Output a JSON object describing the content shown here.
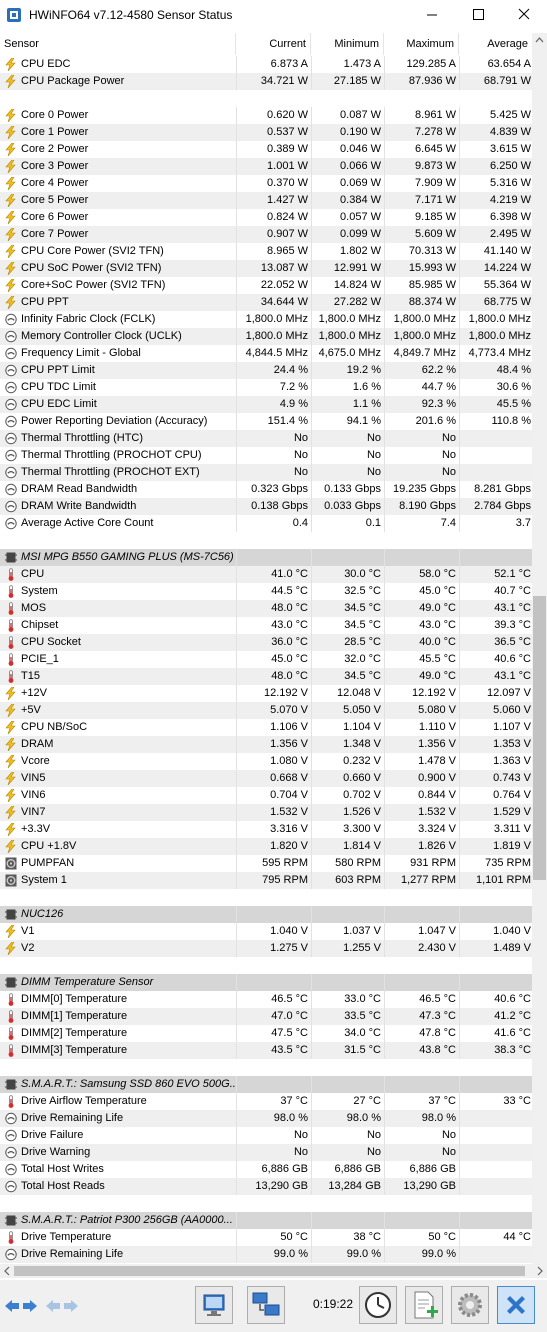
{
  "window": {
    "title": "HWiNFO64 v7.12-4580 Sensor Status"
  },
  "columns": [
    "Sensor",
    "Current",
    "Minimum",
    "Maximum",
    "Average"
  ],
  "rows": [
    {
      "icon": "bolt",
      "name": "CPU EDC",
      "cur": "6.873 A",
      "min": "1.473 A",
      "max": "129.285 A",
      "avg": "63.654 A"
    },
    {
      "icon": "bolt",
      "name": "CPU Package Power",
      "cur": "34.721 W",
      "min": "27.185 W",
      "max": "87.936 W",
      "avg": "68.791 W"
    },
    {
      "type": "blank"
    },
    {
      "icon": "bolt",
      "name": "Core 0 Power",
      "cur": "0.620 W",
      "min": "0.087 W",
      "max": "8.961 W",
      "avg": "5.425 W"
    },
    {
      "icon": "bolt",
      "name": "Core 1 Power",
      "cur": "0.537 W",
      "min": "0.190 W",
      "max": "7.278 W",
      "avg": "4.839 W"
    },
    {
      "icon": "bolt",
      "name": "Core 2 Power",
      "cur": "0.389 W",
      "min": "0.046 W",
      "max": "6.645 W",
      "avg": "3.615 W"
    },
    {
      "icon": "bolt",
      "name": "Core 3 Power",
      "cur": "1.001 W",
      "min": "0.066 W",
      "max": "9.873 W",
      "avg": "6.250 W"
    },
    {
      "icon": "bolt",
      "name": "Core 4 Power",
      "cur": "0.370 W",
      "min": "0.069 W",
      "max": "7.909 W",
      "avg": "5.316 W"
    },
    {
      "icon": "bolt",
      "name": "Core 5 Power",
      "cur": "1.427 W",
      "min": "0.384 W",
      "max": "7.171 W",
      "avg": "4.219 W"
    },
    {
      "icon": "bolt",
      "name": "Core 6 Power",
      "cur": "0.824 W",
      "min": "0.057 W",
      "max": "9.185 W",
      "avg": "6.398 W"
    },
    {
      "icon": "bolt",
      "name": "Core 7 Power",
      "cur": "0.907 W",
      "min": "0.099 W",
      "max": "5.609 W",
      "avg": "2.495 W"
    },
    {
      "icon": "bolt",
      "name": "CPU Core Power (SVI2 TFN)",
      "cur": "8.965 W",
      "min": "1.802 W",
      "max": "70.313 W",
      "avg": "41.140 W"
    },
    {
      "icon": "bolt",
      "name": "CPU SoC Power (SVI2 TFN)",
      "cur": "13.087 W",
      "min": "12.991 W",
      "max": "15.993 W",
      "avg": "14.224 W"
    },
    {
      "icon": "bolt",
      "name": "Core+SoC Power (SVI2 TFN)",
      "cur": "22.052 W",
      "min": "14.824 W",
      "max": "85.985 W",
      "avg": "55.364 W"
    },
    {
      "icon": "bolt",
      "name": "CPU PPT",
      "cur": "34.644 W",
      "min": "27.282 W",
      "max": "88.374 W",
      "avg": "68.775 W"
    },
    {
      "icon": "gauge",
      "name": "Infinity Fabric Clock (FCLK)",
      "cur": "1,800.0 MHz",
      "min": "1,800.0 MHz",
      "max": "1,800.0 MHz",
      "avg": "1,800.0 MHz"
    },
    {
      "icon": "gauge",
      "name": "Memory Controller Clock (UCLK)",
      "cur": "1,800.0 MHz",
      "min": "1,800.0 MHz",
      "max": "1,800.0 MHz",
      "avg": "1,800.0 MHz"
    },
    {
      "icon": "gauge",
      "name": "Frequency Limit - Global",
      "cur": "4,844.5 MHz",
      "min": "4,675.0 MHz",
      "max": "4,849.7 MHz",
      "avg": "4,773.4 MHz"
    },
    {
      "icon": "gauge",
      "name": "CPU PPT Limit",
      "cur": "24.4 %",
      "min": "19.2 %",
      "max": "62.2 %",
      "avg": "48.4 %"
    },
    {
      "icon": "gauge",
      "name": "CPU TDC Limit",
      "cur": "7.2 %",
      "min": "1.6 %",
      "max": "44.7 %",
      "avg": "30.6 %"
    },
    {
      "icon": "gauge",
      "name": "CPU EDC Limit",
      "cur": "4.9 %",
      "min": "1.1 %",
      "max": "92.3 %",
      "avg": "45.5 %"
    },
    {
      "icon": "gauge",
      "name": "Power Reporting Deviation (Accuracy)",
      "cur": "151.4 %",
      "min": "94.1 %",
      "max": "201.6 %",
      "avg": "110.8 %"
    },
    {
      "icon": "gauge",
      "name": "Thermal Throttling (HTC)",
      "cur": "No",
      "min": "No",
      "max": "No",
      "avg": ""
    },
    {
      "icon": "gauge",
      "name": "Thermal Throttling (PROCHOT CPU)",
      "cur": "No",
      "min": "No",
      "max": "No",
      "avg": ""
    },
    {
      "icon": "gauge",
      "name": "Thermal Throttling (PROCHOT EXT)",
      "cur": "No",
      "min": "No",
      "max": "No",
      "avg": ""
    },
    {
      "icon": "gauge",
      "name": "DRAM Read Bandwidth",
      "cur": "0.323 Gbps",
      "min": "0.133 Gbps",
      "max": "19.235 Gbps",
      "avg": "8.281 Gbps"
    },
    {
      "icon": "gauge",
      "name": "DRAM Write Bandwidth",
      "cur": "0.138 Gbps",
      "min": "0.033 Gbps",
      "max": "8.190 Gbps",
      "avg": "2.784 Gbps"
    },
    {
      "icon": "gauge",
      "name": "Average Active Core Count",
      "cur": "0.4",
      "min": "0.1",
      "max": "7.4",
      "avg": "3.7"
    },
    {
      "type": "blank"
    },
    {
      "type": "group",
      "icon": "chip",
      "name": "MSI MPG B550 GAMING PLUS (MS-7C56) (..."
    },
    {
      "icon": "thermo",
      "name": "CPU",
      "cur": "41.0 °C",
      "min": "30.0 °C",
      "max": "58.0 °C",
      "avg": "52.1 °C"
    },
    {
      "icon": "thermo",
      "name": "System",
      "cur": "44.5 °C",
      "min": "32.5 °C",
      "max": "45.0 °C",
      "avg": "40.7 °C"
    },
    {
      "icon": "thermo",
      "name": "MOS",
      "cur": "48.0 °C",
      "min": "34.5 °C",
      "max": "49.0 °C",
      "avg": "43.1 °C"
    },
    {
      "icon": "thermo",
      "name": "Chipset",
      "cur": "43.0 °C",
      "min": "34.5 °C",
      "max": "43.0 °C",
      "avg": "39.3 °C"
    },
    {
      "icon": "thermo",
      "name": "CPU Socket",
      "cur": "36.0 °C",
      "min": "28.5 °C",
      "max": "40.0 °C",
      "avg": "36.5 °C"
    },
    {
      "icon": "thermo",
      "name": "PCIE_1",
      "cur": "45.0 °C",
      "min": "32.0 °C",
      "max": "45.5 °C",
      "avg": "40.6 °C"
    },
    {
      "icon": "thermo",
      "name": "T15",
      "cur": "48.0 °C",
      "min": "34.5 °C",
      "max": "49.0 °C",
      "avg": "43.1 °C"
    },
    {
      "icon": "bolt",
      "name": "+12V",
      "cur": "12.192 V",
      "min": "12.048 V",
      "max": "12.192 V",
      "avg": "12.097 V"
    },
    {
      "icon": "bolt",
      "name": "+5V",
      "cur": "5.070 V",
      "min": "5.050 V",
      "max": "5.080 V",
      "avg": "5.060 V"
    },
    {
      "icon": "bolt",
      "name": "CPU NB/SoC",
      "cur": "1.106 V",
      "min": "1.104 V",
      "max": "1.110 V",
      "avg": "1.107 V"
    },
    {
      "icon": "bolt",
      "name": "DRAM",
      "cur": "1.356 V",
      "min": "1.348 V",
      "max": "1.356 V",
      "avg": "1.353 V"
    },
    {
      "icon": "bolt",
      "name": "Vcore",
      "cur": "1.080 V",
      "min": "0.232 V",
      "max": "1.478 V",
      "avg": "1.363 V"
    },
    {
      "icon": "bolt",
      "name": "VIN5",
      "cur": "0.668 V",
      "min": "0.660 V",
      "max": "0.900 V",
      "avg": "0.743 V"
    },
    {
      "icon": "bolt",
      "name": "VIN6",
      "cur": "0.704 V",
      "min": "0.702 V",
      "max": "0.844 V",
      "avg": "0.764 V"
    },
    {
      "icon": "bolt",
      "name": "VIN7",
      "cur": "1.532 V",
      "min": "1.526 V",
      "max": "1.532 V",
      "avg": "1.529 V"
    },
    {
      "icon": "bolt",
      "name": "+3.3V",
      "cur": "3.316 V",
      "min": "3.300 V",
      "max": "3.324 V",
      "avg": "3.311 V"
    },
    {
      "icon": "bolt",
      "name": "CPU +1.8V",
      "cur": "1.820 V",
      "min": "1.814 V",
      "max": "1.826 V",
      "avg": "1.819 V"
    },
    {
      "icon": "fan",
      "name": "PUMPFAN",
      "cur": "595 RPM",
      "min": "580 RPM",
      "max": "931 RPM",
      "avg": "735 RPM"
    },
    {
      "icon": "fan",
      "name": "System 1",
      "cur": "795 RPM",
      "min": "603 RPM",
      "max": "1,277 RPM",
      "avg": "1,101 RPM"
    },
    {
      "type": "blank"
    },
    {
      "type": "group",
      "icon": "chip",
      "name": "NUC126"
    },
    {
      "icon": "bolt",
      "name": "V1",
      "cur": "1.040 V",
      "min": "1.037 V",
      "max": "1.047 V",
      "avg": "1.040 V"
    },
    {
      "icon": "bolt",
      "name": "V2",
      "cur": "1.275 V",
      "min": "1.255 V",
      "max": "2.430 V",
      "avg": "1.489 V"
    },
    {
      "type": "blank"
    },
    {
      "type": "group",
      "icon": "chip",
      "name": "DIMM Temperature Sensor"
    },
    {
      "icon": "thermo",
      "name": "DIMM[0] Temperature",
      "cur": "46.5 °C",
      "min": "33.0 °C",
      "max": "46.5 °C",
      "avg": "40.6 °C"
    },
    {
      "icon": "thermo",
      "name": "DIMM[1] Temperature",
      "cur": "47.0 °C",
      "min": "33.5 °C",
      "max": "47.3 °C",
      "avg": "41.2 °C"
    },
    {
      "icon": "thermo",
      "name": "DIMM[2] Temperature",
      "cur": "47.5 °C",
      "min": "34.0 °C",
      "max": "47.8 °C",
      "avg": "41.6 °C"
    },
    {
      "icon": "thermo",
      "name": "DIMM[3] Temperature",
      "cur": "43.5 °C",
      "min": "31.5 °C",
      "max": "43.8 °C",
      "avg": "38.3 °C"
    },
    {
      "type": "blank"
    },
    {
      "type": "group",
      "icon": "chip",
      "name": "S.M.A.R.T.: Samsung SSD 860 EVO 500G..."
    },
    {
      "icon": "thermo",
      "name": "Drive Airflow Temperature",
      "cur": "37 °C",
      "min": "27 °C",
      "max": "37 °C",
      "avg": "33 °C"
    },
    {
      "icon": "gauge",
      "name": "Drive Remaining Life",
      "cur": "98.0 %",
      "min": "98.0 %",
      "max": "98.0 %",
      "avg": ""
    },
    {
      "icon": "gauge",
      "name": "Drive Failure",
      "cur": "No",
      "min": "No",
      "max": "No",
      "avg": ""
    },
    {
      "icon": "gauge",
      "name": "Drive Warning",
      "cur": "No",
      "min": "No",
      "max": "No",
      "avg": ""
    },
    {
      "icon": "gauge",
      "name": "Total Host Writes",
      "cur": "6,886 GB",
      "min": "6,886 GB",
      "max": "6,886 GB",
      "avg": ""
    },
    {
      "icon": "gauge",
      "name": "Total Host Reads",
      "cur": "13,290 GB",
      "min": "13,284 GB",
      "max": "13,290 GB",
      "avg": ""
    },
    {
      "type": "blank"
    },
    {
      "type": "group",
      "icon": "chip",
      "name": "S.M.A.R.T.: Patriot P300 256GB (AA0000..."
    },
    {
      "icon": "thermo",
      "name": "Drive Temperature",
      "cur": "50 °C",
      "min": "38 °C",
      "max": "50 °C",
      "avg": "44 °C"
    },
    {
      "icon": "gauge",
      "name": "Drive Remaining Life",
      "cur": "99.0 %",
      "min": "99.0 %",
      "max": "99.0 %",
      "avg": ""
    }
  ],
  "toolbar": {
    "elapsed": "0:19:22"
  }
}
